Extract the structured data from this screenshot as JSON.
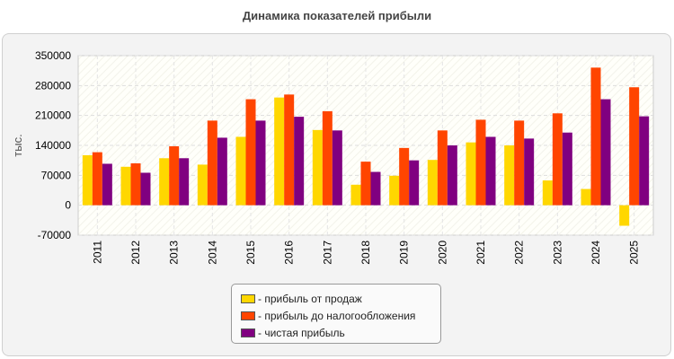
{
  "chart_data": {
    "type": "bar",
    "title": "Динамика показателей прибыли",
    "xlabel": "",
    "ylabel": "тыс.",
    "ylim": [
      -70000,
      350000
    ],
    "yticks": [
      -70000,
      0,
      70000,
      140000,
      210000,
      280000,
      350000
    ],
    "grid": true,
    "legend_position": "bottom-center",
    "categories": [
      "2011",
      "2012",
      "2013",
      "2014",
      "2015",
      "2016",
      "2017",
      "2018",
      "2019",
      "2020",
      "2021",
      "2022",
      "2023",
      "2024",
      "2025"
    ],
    "series": [
      {
        "name": "- прибыль от продаж",
        "color": "#ffd700",
        "values": [
          117000,
          90000,
          110000,
          95000,
          160000,
          252000,
          176000,
          48000,
          69000,
          106000,
          147000,
          140000,
          58000,
          38000,
          -48000
        ]
      },
      {
        "name": "- прибыль до налогообложения",
        "color": "#ff4500",
        "values": [
          124000,
          98000,
          138000,
          198000,
          248000,
          259000,
          220000,
          102000,
          134000,
          175000,
          200000,
          198000,
          215000,
          322000,
          276000
        ]
      },
      {
        "name": "- чистая прибыль",
        "color": "#800080",
        "values": [
          97000,
          76000,
          110000,
          158000,
          198000,
          207000,
          175000,
          78000,
          105000,
          140000,
          160000,
          156000,
          170000,
          248000,
          208000
        ]
      }
    ]
  }
}
